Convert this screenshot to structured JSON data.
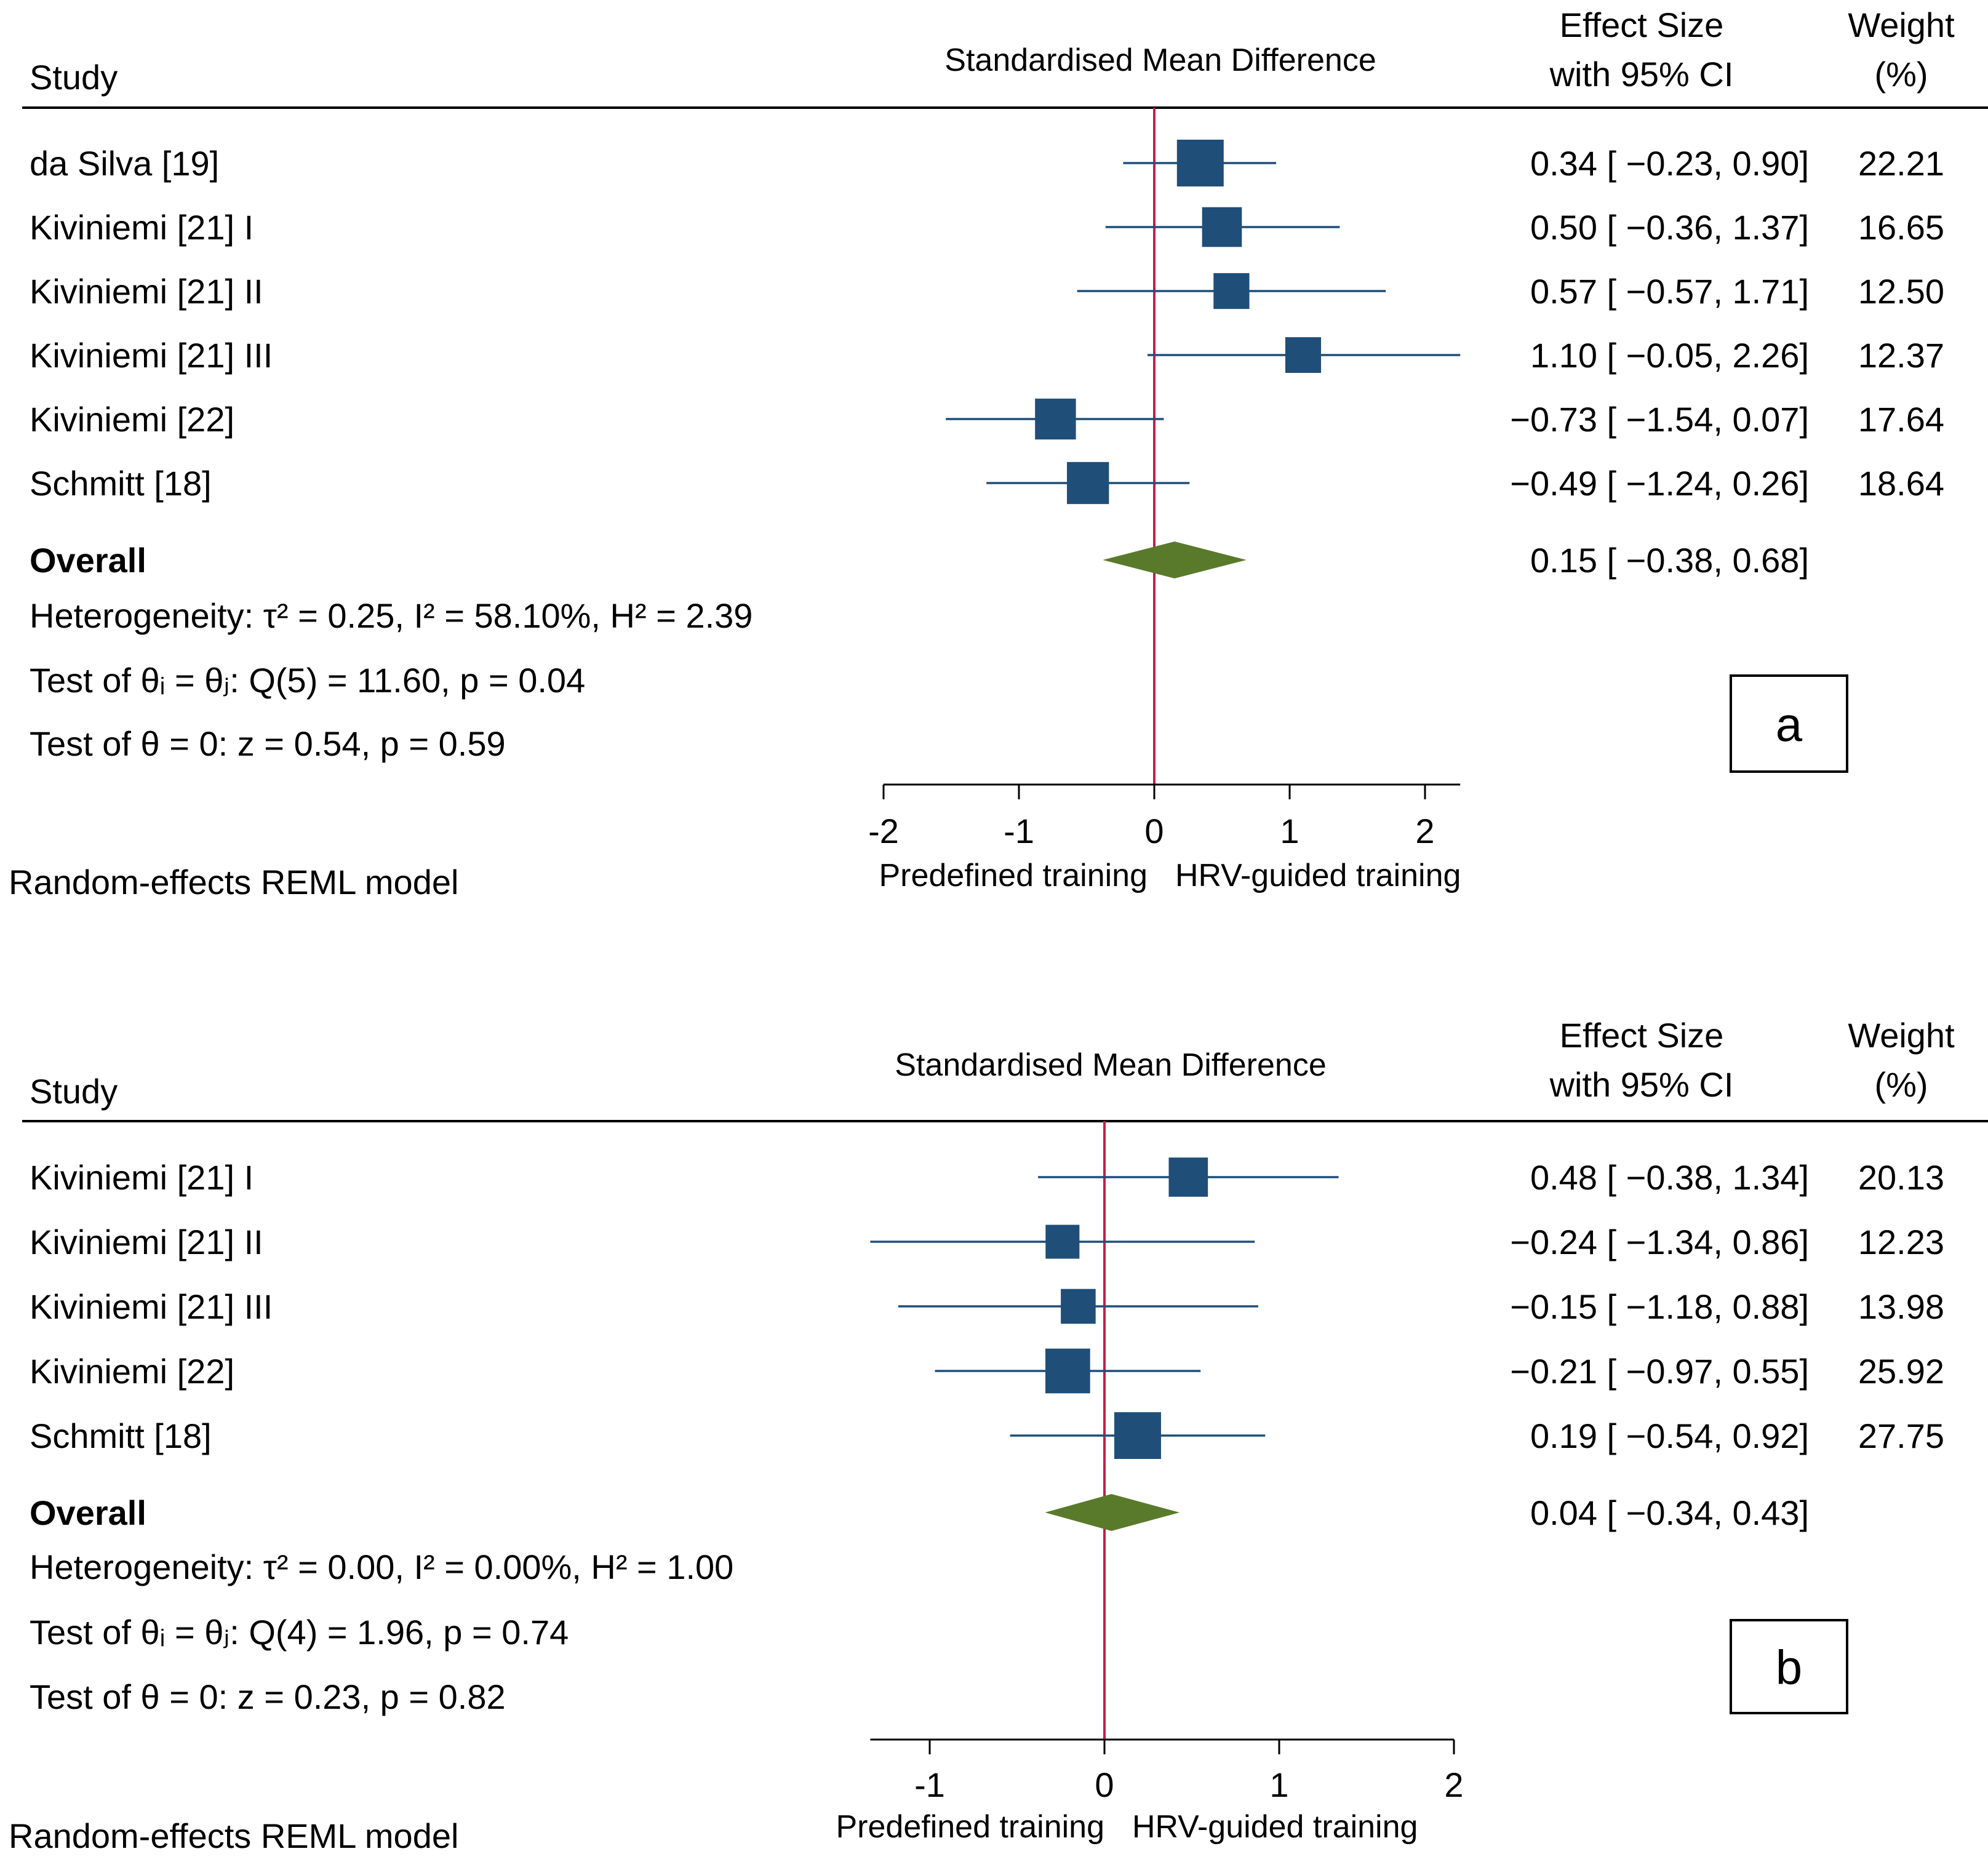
{
  "chart_data": [
    {
      "type": "forest",
      "panel_label": "a",
      "header": {
        "study": "Study",
        "axis_title": "Standardised Mean Difference",
        "effect_size_line1": "Effect Size",
        "effect_size_line2": "with 95% CI",
        "weight_line1": "Weight",
        "weight_line2": "(%)"
      },
      "studies": [
        {
          "name": "da Silva [19]",
          "es": 0.34,
          "lo": -0.23,
          "hi": 0.9,
          "es_text": "0.34 [ −0.23,  0.90]",
          "weight": 22.21,
          "weight_text": "22.21"
        },
        {
          "name": "Kiviniemi [21] I",
          "es": 0.5,
          "lo": -0.36,
          "hi": 1.37,
          "es_text": "0.50 [ −0.36,  1.37]",
          "weight": 16.65,
          "weight_text": "16.65"
        },
        {
          "name": "Kiviniemi [21] II",
          "es": 0.57,
          "lo": -0.57,
          "hi": 1.71,
          "es_text": "0.57 [ −0.57,  1.71]",
          "weight": 12.5,
          "weight_text": "12.50"
        },
        {
          "name": "Kiviniemi [21] III",
          "es": 1.1,
          "lo": -0.05,
          "hi": 2.26,
          "es_text": "1.10 [ −0.05,  2.26]",
          "weight": 12.37,
          "weight_text": "12.37"
        },
        {
          "name": "Kiviniemi [22]",
          "es": -0.73,
          "lo": -1.54,
          "hi": 0.07,
          "es_text": "−0.73 [ −1.54,  0.07]",
          "weight": 17.64,
          "weight_text": "17.64"
        },
        {
          "name": "Schmitt [18]",
          "es": -0.49,
          "lo": -1.24,
          "hi": 0.26,
          "es_text": "−0.49 [ −1.24,  0.26]",
          "weight": 18.64,
          "weight_text": "18.64"
        }
      ],
      "overall": {
        "name": "Overall",
        "es": 0.15,
        "lo": -0.38,
        "hi": 0.68,
        "es_text": "0.15 [ −0.38,  0.68]"
      },
      "heterogeneity": "Heterogeneity: τ² = 0.25, I² = 58.10%, H² = 2.39",
      "test_q": "Test of θᵢ = θⱼ: Q(5) = 11.60, p = 0.04",
      "test_z": "Test of θ = 0: z = 0.54, p = 0.59",
      "model": "Random-effects REML model",
      "x_ticks": [
        -2,
        -1,
        0,
        1,
        2
      ],
      "x_tick_labels": [
        "-2",
        "-1",
        "0",
        "1",
        "2"
      ],
      "xlim": [
        -2,
        2.26
      ],
      "favours_left": "Predefined training",
      "favours_right": "HRV-guided training",
      "colors": {
        "marker": "#1f4e79",
        "diamond": "#5a7a2b",
        "null_line": "#c21f4a"
      }
    },
    {
      "type": "forest",
      "panel_label": "b",
      "header": {
        "study": "Study",
        "axis_title": "Standardised Mean Difference",
        "effect_size_line1": "Effect Size",
        "effect_size_line2": "with 95% CI",
        "weight_line1": "Weight",
        "weight_line2": "(%)"
      },
      "studies": [
        {
          "name": "Kiviniemi [21] I",
          "es": 0.48,
          "lo": -0.38,
          "hi": 1.34,
          "es_text": "0.48 [ −0.38,  1.34]",
          "weight": 20.13,
          "weight_text": "20.13"
        },
        {
          "name": "Kiviniemi [21] II",
          "es": -0.24,
          "lo": -1.34,
          "hi": 0.86,
          "es_text": "−0.24 [ −1.34,  0.86]",
          "weight": 12.23,
          "weight_text": "12.23"
        },
        {
          "name": "Kiviniemi [21] III",
          "es": -0.15,
          "lo": -1.18,
          "hi": 0.88,
          "es_text": "−0.15 [ −1.18,  0.88]",
          "weight": 13.98,
          "weight_text": "13.98"
        },
        {
          "name": "Kiviniemi [22]",
          "es": -0.21,
          "lo": -0.97,
          "hi": 0.55,
          "es_text": "−0.21 [ −0.97,  0.55]",
          "weight": 25.92,
          "weight_text": "25.92"
        },
        {
          "name": "Schmitt [18]",
          "es": 0.19,
          "lo": -0.54,
          "hi": 0.92,
          "es_text": "0.19 [ −0.54,  0.92]",
          "weight": 27.75,
          "weight_text": "27.75"
        }
      ],
      "overall": {
        "name": "Overall",
        "es": 0.04,
        "lo": -0.34,
        "hi": 0.43,
        "es_text": "0.04 [ −0.34,  0.43]"
      },
      "heterogeneity": "Heterogeneity: τ² = 0.00, I² = 0.00%, H² = 1.00",
      "test_q": "Test of θᵢ = θⱼ: Q(4) = 1.96, p = 0.74",
      "test_z": "Test of θ = 0: z = 0.23, p = 0.82",
      "model": "Random-effects REML model",
      "x_ticks": [
        -1,
        0,
        1,
        2
      ],
      "x_tick_labels": [
        "-1",
        "0",
        "1",
        "2"
      ],
      "xlim": [
        -1.34,
        2
      ],
      "favours_left": "Predefined training",
      "favours_right": "HRV-guided training",
      "colors": {
        "marker": "#1f4e79",
        "diamond": "#5a7a2b",
        "null_line": "#c21f4a"
      }
    }
  ]
}
